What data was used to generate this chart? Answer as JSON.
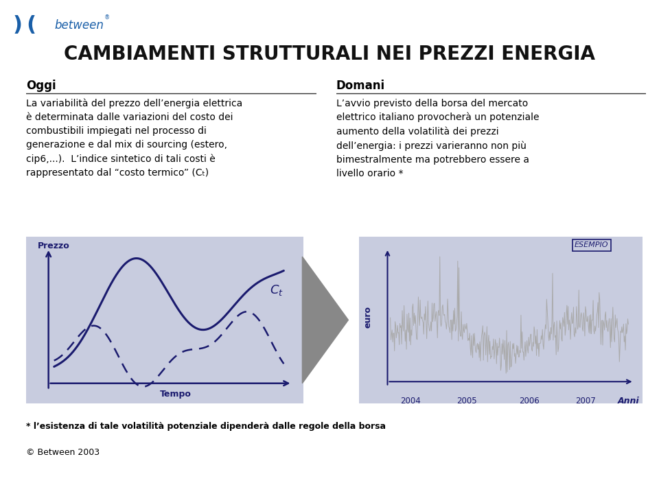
{
  "title": "CAMBIAMENTI STRUTTURALI NEI PREZZI ENERGIA",
  "bg_color": "#ffffff",
  "panel_bg": "#c8ccdf",
  "oggi_header": "Oggi",
  "oggi_body": "La variabilità del prezzo dell’energia elettrica\nè determinata dalle variazioni del costo dei\ncombustibili impiegati nel processo di\ngenerazione e dal mix di sourcing (estero,\ncip6,...).  L’indice sintetico di tali costi è\nrappresentato dal “costo termico” (Cₜ)",
  "domani_header": "Domani",
  "domani_body": "L’avvio previsto della borsa del mercato\nelettrico italiano provocherà un potenziale\naumento della volatilità dei prezzi\ndell’energia: i prezzi varieranno non più\nbimestralmente ma potrebbero essere a\nlivello orario *",
  "footer_text": "* l’esistenza di tale volatilità potenziale dipenderà dalle regole della borsa",
  "copyright_text": "© Between 2003",
  "left_chart_ylabel": "Prezzo",
  "left_chart_xlabel": "Tempo",
  "right_chart_ylabel": "euro",
  "right_chart_xlabel": "Anni",
  "right_chart_years": [
    "2004",
    "2005",
    "2006",
    "2007"
  ],
  "esempio_label": "ESEMPIO",
  "dark_blue": "#1a1a6e",
  "between_blue": "#1a5fa8",
  "line_color": "#555555",
  "arrow_gray": "#888888",
  "chart_line_gray": "#999999"
}
